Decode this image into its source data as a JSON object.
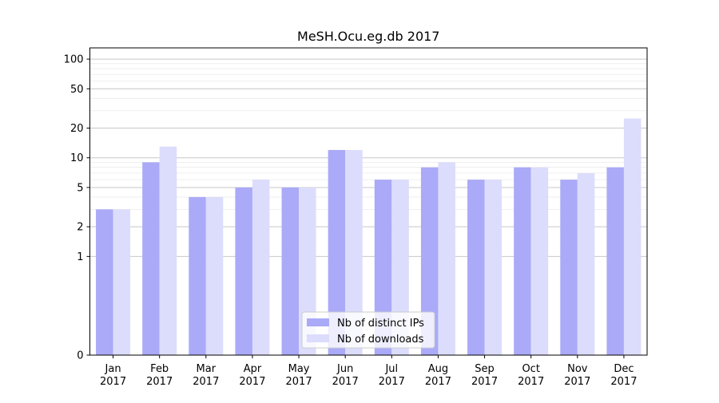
{
  "chart_data": {
    "type": "bar",
    "title": "MeSH.Ocu.eg.db 2017",
    "xlabel": "",
    "ylabel": "",
    "scale": "symlog",
    "ylim": [
      0,
      130
    ],
    "y_ticks": [
      {
        "value": 0,
        "label": "0"
      },
      {
        "value": 1,
        "label": "1"
      },
      {
        "value": 2,
        "label": "2"
      },
      {
        "value": 5,
        "label": "5"
      },
      {
        "value": 10,
        "label": "10"
      },
      {
        "value": 20,
        "label": "20"
      },
      {
        "value": 50,
        "label": "50"
      },
      {
        "value": 100,
        "label": "100"
      }
    ],
    "grid": true,
    "legend_position": "lower center",
    "categories": [
      {
        "month": "Jan",
        "year": "2017"
      },
      {
        "month": "Feb",
        "year": "2017"
      },
      {
        "month": "Mar",
        "year": "2017"
      },
      {
        "month": "Apr",
        "year": "2017"
      },
      {
        "month": "May",
        "year": "2017"
      },
      {
        "month": "Jun",
        "year": "2017"
      },
      {
        "month": "Jul",
        "year": "2017"
      },
      {
        "month": "Aug",
        "year": "2017"
      },
      {
        "month": "Sep",
        "year": "2017"
      },
      {
        "month": "Oct",
        "year": "2017"
      },
      {
        "month": "Nov",
        "year": "2017"
      },
      {
        "month": "Dec",
        "year": "2017"
      }
    ],
    "series": [
      {
        "name": "Nb of distinct IPs",
        "color": "#aaaaf8",
        "values": [
          3,
          9,
          4,
          5,
          5,
          12,
          6,
          8,
          6,
          8,
          6,
          8
        ]
      },
      {
        "name": "Nb of downloads",
        "color": "#dcdcfc",
        "values": [
          3,
          13,
          4,
          6,
          5,
          12,
          6,
          9,
          6,
          8,
          7,
          25
        ]
      }
    ]
  }
}
